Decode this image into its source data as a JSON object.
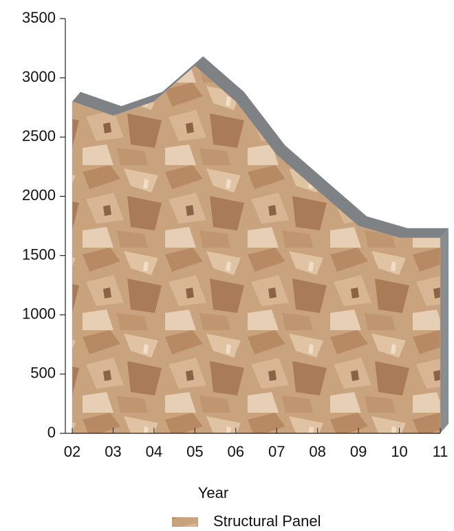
{
  "chart_data": {
    "type": "area",
    "x_label": "Year",
    "categories": [
      "02",
      "03",
      "04",
      "05",
      "06",
      "07",
      "08",
      "09",
      "10",
      "11"
    ],
    "series": [
      {
        "name": "Structural Panel",
        "color": "#c9a27e",
        "values": [
          2800,
          2680,
          2800,
          3100,
          2800,
          2350,
          2050,
          1750,
          1650,
          1650
        ]
      }
    ],
    "ylim": [
      0,
      3500
    ],
    "yticks": [
      0,
      500,
      1000,
      1500,
      2000,
      2500,
      3000,
      3500
    ]
  }
}
